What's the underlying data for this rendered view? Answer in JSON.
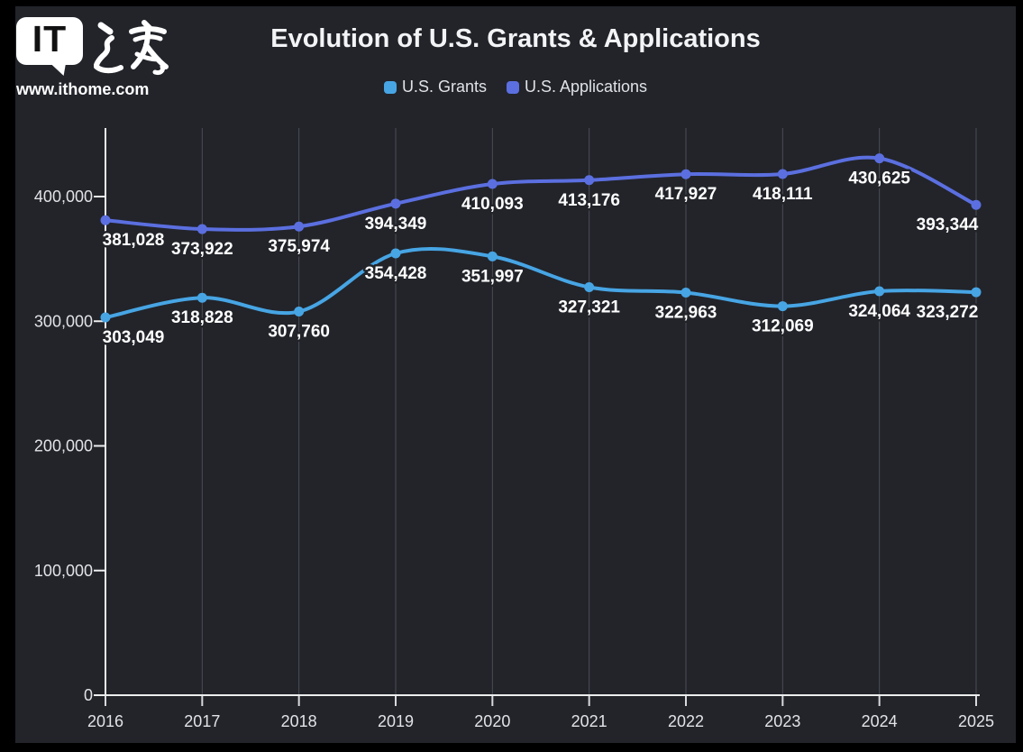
{
  "logo": {
    "bubble_text": "IT",
    "cjk": "之家",
    "url": "www.ithome.com"
  },
  "chart_data": {
    "type": "line",
    "title": "Evolution of U.S. Grants & Applications",
    "categories": [
      "2016",
      "2017",
      "2018",
      "2019",
      "2020",
      "2021",
      "2022",
      "2023",
      "2024",
      "2025"
    ],
    "series": [
      {
        "name": "U.S. Grants",
        "color": "#47a5e4",
        "values": [
          303049,
          318828,
          307760,
          354428,
          351997,
          327321,
          322963,
          312069,
          324064,
          323272
        ]
      },
      {
        "name": "U.S. Applications",
        "color": "#5b6fe0",
        "values": [
          381028,
          373922,
          375974,
          394349,
          410093,
          413176,
          417927,
          418111,
          430625,
          393344
        ]
      }
    ],
    "xlabel": "",
    "ylabel": "",
    "ylim": [
      0,
      455000
    ],
    "y_ticks": [
      0,
      100000,
      200000,
      300000,
      400000
    ],
    "y_tick_labels": [
      "0",
      "100,000",
      "200,000",
      "300,000",
      "400,000"
    ],
    "grid": "vertical-only",
    "legend_position": "top",
    "smooth": true,
    "data_labels": "below-points",
    "colors": {
      "background": "#22242a",
      "frame": "#000000",
      "axis": "#eceded",
      "gridline": "#4b4e56",
      "label_text": "#ffffff"
    }
  }
}
